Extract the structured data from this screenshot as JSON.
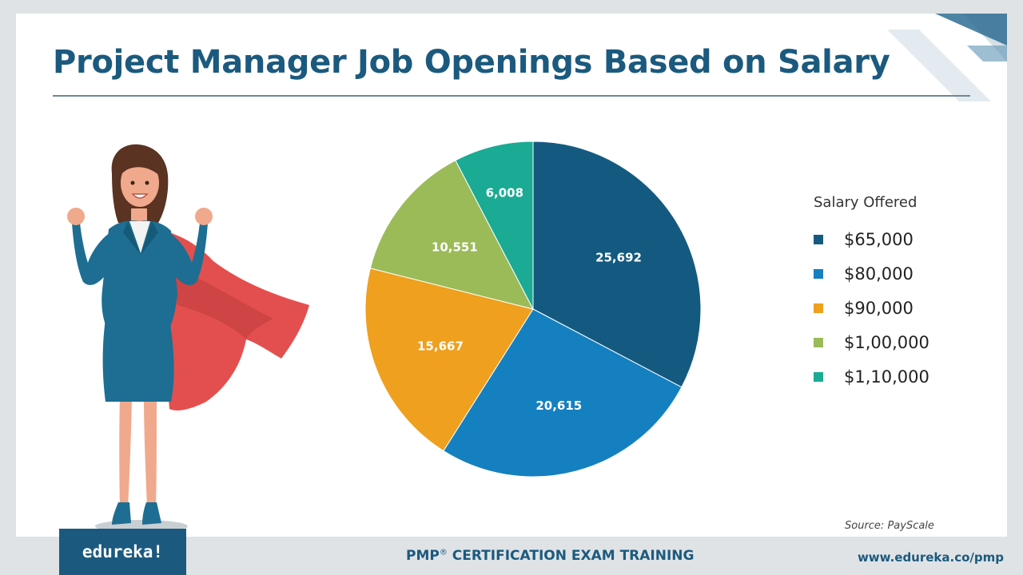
{
  "slide": {
    "title": "Project Manager Job Openings Based on Salary",
    "source": "Source: PayScale"
  },
  "chart_data": {
    "type": "pie",
    "categories": [
      "$65,000",
      "$80,000",
      "$90,000",
      "$1,00,000",
      "$1,10,000"
    ],
    "values": [
      25692,
      20615,
      15667,
      10551,
      6008
    ],
    "value_labels": [
      "25,692",
      "20,615",
      "15,667",
      "10,551",
      "6,008"
    ],
    "colors": [
      "#145a80",
      "#1580c0",
      "#eea01e",
      "#9bbb59",
      "#1baa94"
    ],
    "legend_title": "Salary Offered",
    "legend_placement": "right",
    "start_angle_deg": 0,
    "direction": "clockwise"
  },
  "footer": {
    "logo_text": "edureka!",
    "course_main": "PMP",
    "course_reg": "®",
    "course_rest": " CERTIFICATION EXAM TRAINING",
    "url": "www.edureka.co/pmp"
  },
  "illustration": {
    "icon": "superhero-businesswoman-illustration",
    "colors": {
      "suit": "#1d6e92",
      "cape": "#e34f4f",
      "skin": "#f0a98c",
      "hair": "#5a3322"
    }
  }
}
